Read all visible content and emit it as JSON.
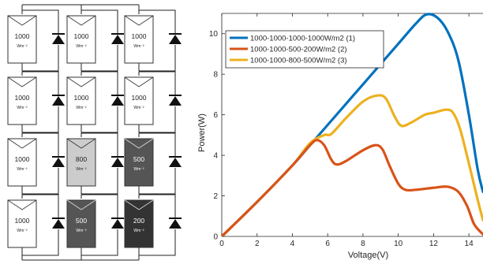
{
  "array": {
    "rows": [
      [
        {
          "irr": "1000",
          "unit": "Wm⁻²",
          "fill": "#ffffff"
        },
        {
          "irr": "1000",
          "unit": "Wm⁻²",
          "fill": "#ffffff"
        },
        {
          "irr": "1000",
          "unit": "Wm⁻²",
          "fill": "#ffffff"
        }
      ],
      [
        {
          "irr": "1000",
          "unit": "Wm⁻²",
          "fill": "#ffffff"
        },
        {
          "irr": "1000",
          "unit": "Wm⁻²",
          "fill": "#ffffff"
        },
        {
          "irr": "1000",
          "unit": "Wm⁻²",
          "fill": "#ffffff"
        }
      ],
      [
        {
          "irr": "1000",
          "unit": "Wm⁻²",
          "fill": "#ffffff"
        },
        {
          "irr": "800",
          "unit": "Wm⁻²",
          "fill": "#cccccc"
        },
        {
          "irr": "500",
          "unit": "Wm⁻²",
          "fill": "#555555"
        }
      ],
      [
        {
          "irr": "1000",
          "unit": "Wm⁻²",
          "fill": "#ffffff"
        },
        {
          "irr": "500",
          "unit": "Wm⁻²",
          "fill": "#555555"
        },
        {
          "irr": "200",
          "unit": "Wm⁻²",
          "fill": "#333333"
        }
      ]
    ]
  },
  "chart_data": {
    "type": "line",
    "title": "",
    "xlabel": "Voltage(V)",
    "ylabel": "Power(W)",
    "xlim": [
      0,
      14.8
    ],
    "ylim": [
      0,
      11
    ],
    "xticks": [
      0,
      2,
      4,
      6,
      8,
      10,
      12,
      14
    ],
    "yticks": [
      0,
      2,
      4,
      6,
      8,
      10
    ],
    "grid": false,
    "legend": "top-left",
    "series": [
      {
        "name": "1000-1000-1000-1000W/m2 (1)",
        "color": "#0072BD",
        "x": [
          0,
          2,
          4,
          5,
          6,
          7,
          8,
          9,
          10,
          11,
          11.6,
          12.2,
          12.8,
          13.4,
          14,
          14.5,
          14.8
        ],
        "y": [
          0,
          1.7,
          3.5,
          4.5,
          5.5,
          6.5,
          7.5,
          8.5,
          9.5,
          10.5,
          10.95,
          10.8,
          10.1,
          8.7,
          6.0,
          3.3,
          2.2
        ]
      },
      {
        "name": "1000-1000-500-200W/m2 (2)",
        "color": "#D95319",
        "x": [
          0,
          2,
          4,
          5,
          5.4,
          5.8,
          6.2,
          6.5,
          7,
          8,
          8.7,
          9.1,
          9.5,
          10,
          10.4,
          11,
          12,
          12.8,
          13.4,
          13.9,
          14.3,
          14.8
        ],
        "y": [
          0,
          1.7,
          3.5,
          4.5,
          4.75,
          4.5,
          3.8,
          3.55,
          3.7,
          4.25,
          4.5,
          4.3,
          3.5,
          2.6,
          2.3,
          2.3,
          2.4,
          2.45,
          2.2,
          1.5,
          0.6,
          0.1
        ]
      },
      {
        "name": "1000-1000-800-500W/m2 (3)",
        "color": "#EDB120",
        "x": [
          0,
          2,
          4,
          5,
          5.8,
          6.2,
          7,
          8,
          8.8,
          9.3,
          9.8,
          10.2,
          10.8,
          11.5,
          12,
          12.7,
          13.1,
          13.5,
          14,
          14.5,
          14.8
        ],
        "y": [
          0,
          1.7,
          3.5,
          4.6,
          5.0,
          5.05,
          5.8,
          6.65,
          6.95,
          6.8,
          5.9,
          5.45,
          5.65,
          6.0,
          6.1,
          6.25,
          6.1,
          5.3,
          3.6,
          1.8,
          0.8
        ]
      }
    ]
  }
}
